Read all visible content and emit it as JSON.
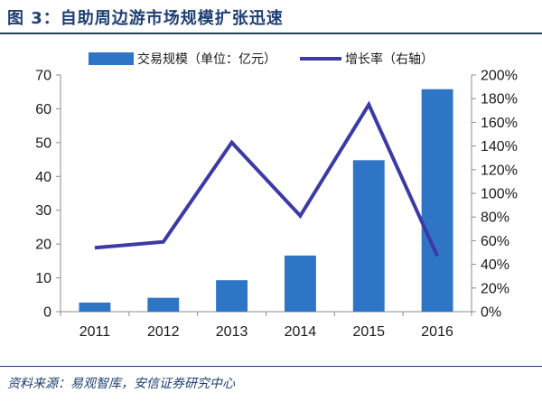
{
  "figure": {
    "title": "图 3：自助周边游市场规模扩张迅速",
    "source": "资料来源：易观智库，安信证券研究中心"
  },
  "colors": {
    "bar": "#2e75c6",
    "line": "#3b3aa6",
    "accent": "#1f3f73"
  },
  "chart_data": {
    "type": "bar",
    "categories": [
      "2011",
      "2012",
      "2013",
      "2014",
      "2015",
      "2016"
    ],
    "series": [
      {
        "name": "交易规模（单位：亿元）",
        "type": "bar",
        "axis": "left",
        "values": [
          2.7,
          4.1,
          9.3,
          16.6,
          44.8,
          65.8
        ]
      },
      {
        "name": "增长率（右轴）",
        "type": "line",
        "axis": "right",
        "values": [
          54,
          59,
          143,
          81,
          175,
          47
        ]
      }
    ],
    "y_left": {
      "min": 0,
      "max": 70,
      "ticks": [
        "0",
        "10",
        "20",
        "30",
        "40",
        "50",
        "60",
        "70"
      ]
    },
    "y_right": {
      "min": 0,
      "max": 200,
      "ticks": [
        "0%",
        "20%",
        "40%",
        "60%",
        "80%",
        "100%",
        "120%",
        "140%",
        "160%",
        "180%",
        "200%"
      ]
    },
    "grid": false,
    "legend_position": "top"
  }
}
